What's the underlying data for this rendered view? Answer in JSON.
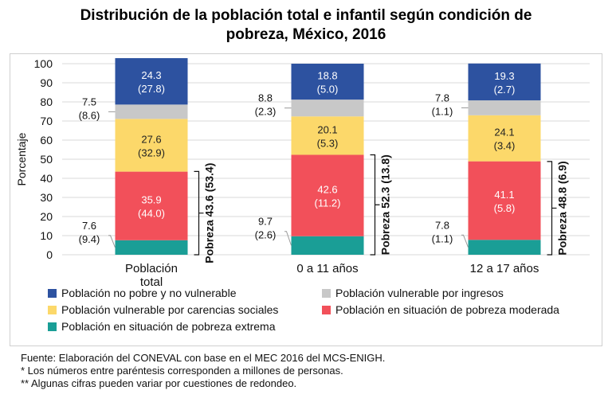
{
  "title": {
    "line1": "Distribución de la población total e infantil según condición de",
    "line2": "pobreza, México, 2016"
  },
  "chart_data": {
    "type": "bar",
    "stacked": true,
    "ylabel": "Porcentaje",
    "ylim": [
      0,
      100
    ],
    "yticks": [
      "0",
      "10",
      "20",
      "30",
      "40",
      "50",
      "60",
      "70",
      "80",
      "90",
      "100"
    ],
    "grid": true,
    "categories": [
      {
        "line1": "Población",
        "line2": "total"
      },
      {
        "line1": "0 a 11 años",
        "line2": ""
      },
      {
        "line1": "12 a 17 años",
        "line2": ""
      }
    ],
    "series": [
      {
        "name": "Población en situación de pobreza extrema",
        "color": "#1a9e96",
        "values": [
          7.6,
          9.7,
          7.8
        ],
        "label_pct": [
          "7.6",
          "9.7",
          "7.8"
        ],
        "label_mill": [
          "(9.4)",
          "(2.6)",
          "(1.1)"
        ]
      },
      {
        "name": "Población en situación de pobreza moderada",
        "color": "#f2505a",
        "values": [
          35.9,
          42.6,
          41.1
        ],
        "label_pct": [
          "35.9",
          "42.6",
          "41.1"
        ],
        "label_mill": [
          "(44.0)",
          "(11.2)",
          "(5.8)"
        ]
      },
      {
        "name": "Población vulnerable por carencias sociales",
        "color": "#fcd86a",
        "values": [
          27.6,
          20.1,
          24.1
        ],
        "label_pct": [
          "27.6",
          "20.1",
          "24.1"
        ],
        "label_mill": [
          "(32.9)",
          "(5.3)",
          "(3.4)"
        ]
      },
      {
        "name": "Población vulnerable por ingresos",
        "color": "#c8c8c8",
        "values": [
          7.5,
          8.8,
          7.8
        ],
        "label_pct": [
          "7.5",
          "8.8",
          "7.8"
        ],
        "label_mill": [
          "(8.6)",
          "(2.3)",
          "(1.1)"
        ]
      },
      {
        "name": "Población no pobre y no vulnerable",
        "color": "#2d52a0",
        "values": [
          24.3,
          18.8,
          19.3
        ],
        "label_pct": [
          "24.3",
          "18.8",
          "19.3"
        ],
        "label_mill": [
          "(27.8)",
          "(5.0)",
          "(2.7)"
        ]
      }
    ],
    "pobreza_brackets": [
      {
        "value": 43.6,
        "label": "Pobreza 43.6 (53.4)"
      },
      {
        "value": 52.3,
        "label": "Pobreza 52.3 (13.8)"
      },
      {
        "value": 48.8,
        "label": "Pobreza 48.8 (6.9)"
      }
    ],
    "legend": [
      {
        "label": "Población no pobre y no vulnerable",
        "color": "#2d52a0"
      },
      {
        "label": "Población vulnerable por ingresos",
        "color": "#c8c8c8"
      },
      {
        "label": "Población vulnerable por carencias sociales",
        "color": "#fcd86a"
      },
      {
        "label": "Población en situación de pobreza moderada",
        "color": "#f2505a"
      },
      {
        "label": "Población en situación de pobreza extrema",
        "color": "#1a9e96"
      }
    ]
  },
  "notes": [
    "Fuente: Elaboración del CONEVAL con base en el MEC 2016 del MCS-ENIGH.",
    "* Los números entre paréntesis corresponden a millones de personas.",
    "** Algunas cifras pueden variar por cuestiones de redondeo."
  ]
}
